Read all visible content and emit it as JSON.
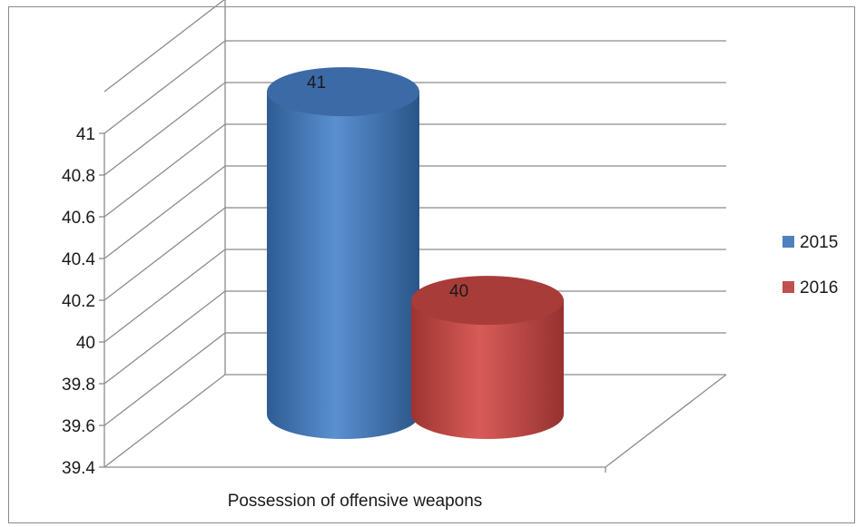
{
  "chart_data": {
    "type": "bar",
    "categories": [
      "Possession of offensive weapons"
    ],
    "series": [
      {
        "name": "2015",
        "values": [
          41
        ],
        "color": "#4f81bd"
      },
      {
        "name": "2016",
        "values": [
          40
        ],
        "color": "#c0504d"
      }
    ],
    "title": "",
    "xlabel": "",
    "ylabel": "",
    "ylim": [
      39.4,
      41
    ],
    "yticks": [
      "39.4",
      "39.6",
      "39.8",
      "40",
      "40.2",
      "40.4",
      "40.6",
      "40.8",
      "41"
    ],
    "data_labels": [
      "41",
      "40"
    ],
    "legend_position": "right",
    "grid": true,
    "style": "3d-cylinder"
  }
}
